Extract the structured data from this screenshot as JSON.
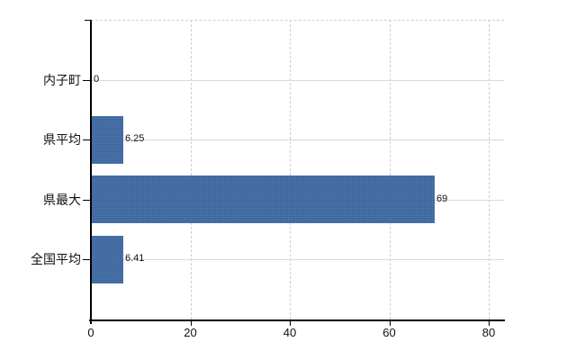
{
  "chart_data": {
    "type": "bar",
    "orientation": "horizontal",
    "title": "",
    "xlabel": "",
    "ylabel": "",
    "categories": [
      "内子町",
      "県平均",
      "県最大",
      "全国平均"
    ],
    "values": [
      0,
      6.25,
      69,
      6.41
    ],
    "value_labels": [
      "0",
      "6.25",
      "69",
      "6.41"
    ],
    "x_ticks": [
      0,
      20,
      40,
      60,
      80
    ],
    "x_tick_labels": [
      "0",
      "20",
      "40",
      "60",
      "80"
    ],
    "xlim": [
      0,
      83
    ],
    "grid": {
      "horizontal": "solid",
      "vertical": "dashed",
      "top_border": "dashed"
    },
    "legend_position": "none",
    "bar_color": "#3d6ba6",
    "horizontal_grid_color": "#d4dcd4",
    "vertical_grid_color": "#d2ccd6",
    "axis_color": "#000000"
  }
}
